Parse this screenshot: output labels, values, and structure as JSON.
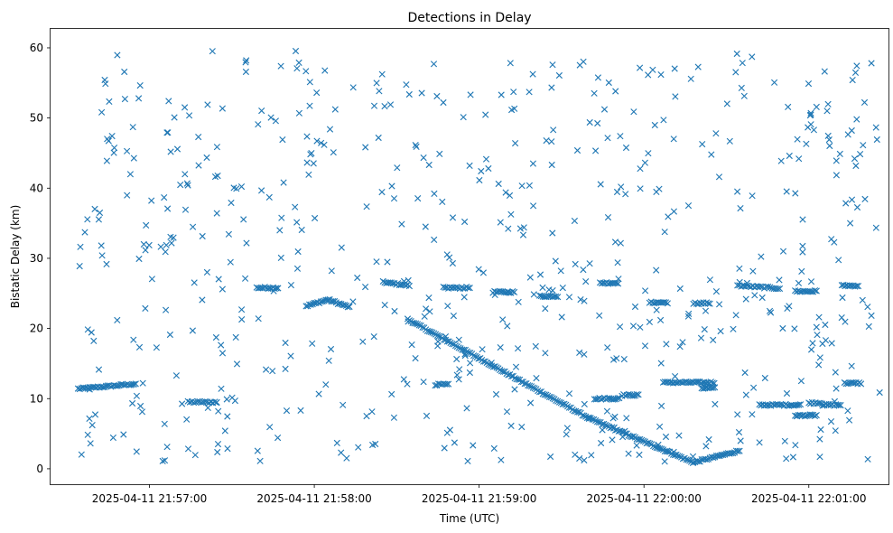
{
  "chart_data": {
    "type": "scatter",
    "title": "Detections in Delay",
    "xlabel": "Time (UTC)",
    "ylabel": "Bistatic Delay (km)",
    "marker": "x",
    "color": "#1f77b4",
    "x_axis_kind": "time",
    "x_range": [
      "2025-04-11 21:56:24",
      "2025-04-11 22:01:29"
    ],
    "x_ticks": [
      "2025-04-11 21:57:00",
      "2025-04-11 21:58:00",
      "2025-04-11 21:59:00",
      "2025-04-11 22:00:00",
      "2025-04-11 22:01:00"
    ],
    "ylim": [
      -2.2,
      62.7
    ],
    "y_ticks": [
      0,
      10,
      20,
      30,
      40,
      50,
      60
    ],
    "grid": false,
    "legend": "none",
    "series": [
      {
        "segments": [
          {
            "t_start": "2025-04-11 21:56:34",
            "t_end": "2025-04-11 21:56:55",
            "d_start": 11.4,
            "d_end": 12.1,
            "step_s": 0.6
          },
          {
            "t_start": "2025-04-11 21:57:14",
            "t_end": "2025-04-11 21:57:25",
            "d_start": 9.5,
            "d_end": 9.5,
            "step_s": 0.7
          },
          {
            "t_start": "2025-04-11 21:57:39",
            "t_end": "2025-04-11 21:57:47",
            "d_start": 25.8,
            "d_end": 25.8,
            "step_s": 0.6
          },
          {
            "t_start": "2025-04-11 21:57:57",
            "t_end": "2025-04-11 21:58:05",
            "d_start": 23.2,
            "d_end": 24.1,
            "step_s": 0.6
          },
          {
            "t_start": "2025-04-11 21:58:05",
            "t_end": "2025-04-11 21:58:13",
            "d_start": 24.1,
            "d_end": 23.0,
            "step_s": 0.6
          },
          {
            "t_start": "2025-04-11 21:58:25",
            "t_end": "2025-04-11 21:58:35",
            "d_start": 26.6,
            "d_end": 26.1,
            "step_s": 0.6
          },
          {
            "t_start": "2025-04-11 21:58:34",
            "t_end": "2025-04-11 21:59:40",
            "d_start": 21.3,
            "d_end": 7.2,
            "step_s": 0.6
          },
          {
            "t_start": "2025-04-11 21:59:40",
            "t_end": "2025-04-11 22:00:18",
            "d_start": 7.2,
            "d_end": 0.9,
            "step_s": 0.6
          },
          {
            "t_start": "2025-04-11 22:00:18",
            "t_end": "2025-04-11 22:00:35",
            "d_start": 0.9,
            "d_end": 2.6,
            "step_s": 0.6
          },
          {
            "t_start": "2025-04-11 21:58:44",
            "t_end": "2025-04-11 21:58:49",
            "d_start": 12.0,
            "d_end": 12.0,
            "step_s": 0.6
          },
          {
            "t_start": "2025-04-11 21:58:47",
            "t_end": "2025-04-11 21:58:57",
            "d_start": 25.8,
            "d_end": 25.8,
            "step_s": 0.6
          },
          {
            "t_start": "2025-04-11 21:59:05",
            "t_end": "2025-04-11 21:59:13",
            "d_start": 25.2,
            "d_end": 25.2,
            "step_s": 0.6
          },
          {
            "t_start": "2025-04-11 21:59:22",
            "t_end": "2025-04-11 21:59:29",
            "d_start": 24.6,
            "d_end": 24.6,
            "step_s": 0.6
          },
          {
            "t_start": "2025-04-11 21:59:42",
            "t_end": "2025-04-11 21:59:51",
            "d_start": 10.0,
            "d_end": 10.0,
            "step_s": 0.6
          },
          {
            "t_start": "2025-04-11 21:59:44",
            "t_end": "2025-04-11 21:59:51",
            "d_start": 26.5,
            "d_end": 26.5,
            "step_s": 0.6
          },
          {
            "t_start": "2025-04-11 21:59:52",
            "t_end": "2025-04-11 21:59:58",
            "d_start": 10.5,
            "d_end": 10.5,
            "step_s": 0.6
          },
          {
            "t_start": "2025-04-11 22:00:02",
            "t_end": "2025-04-11 22:00:09",
            "d_start": 23.7,
            "d_end": 23.7,
            "step_s": 0.6
          },
          {
            "t_start": "2025-04-11 22:00:07",
            "t_end": "2025-04-11 22:00:26",
            "d_start": 12.3,
            "d_end": 12.3,
            "step_s": 0.6
          },
          {
            "t_start": "2025-04-11 22:00:18",
            "t_end": "2025-04-11 22:00:24",
            "d_start": 23.6,
            "d_end": 23.6,
            "step_s": 0.6
          },
          {
            "t_start": "2025-04-11 22:00:21",
            "t_end": "2025-04-11 22:00:26",
            "d_start": 11.5,
            "d_end": 11.5,
            "step_s": 0.6
          },
          {
            "t_start": "2025-04-11 22:00:42",
            "t_end": "2025-04-11 22:00:57",
            "d_start": 9.1,
            "d_end": 9.1,
            "step_s": 0.6
          },
          {
            "t_start": "2025-04-11 22:01:00",
            "t_end": "2025-04-11 22:01:05",
            "d_start": 9.4,
            "d_end": 9.4,
            "step_s": 0.6
          },
          {
            "t_start": "2025-04-11 22:01:05",
            "t_end": "2025-04-11 22:01:12",
            "d_start": 9.1,
            "d_end": 9.1,
            "step_s": 0.6
          },
          {
            "t_start": "2025-04-11 22:01:12",
            "t_end": "2025-04-11 22:01:18",
            "d_start": 26.1,
            "d_end": 26.1,
            "step_s": 0.6
          },
          {
            "t_start": "2025-04-11 22:01:13",
            "t_end": "2025-04-11 22:01:19",
            "d_start": 12.2,
            "d_end": 12.2,
            "step_s": 0.6
          },
          {
            "t_start": "2025-04-11 22:00:34",
            "t_end": "2025-04-11 22:00:50",
            "d_start": 26.1,
            "d_end": 25.7,
            "step_s": 0.7
          },
          {
            "t_start": "2025-04-11 22:00:55",
            "t_end": "2025-04-11 22:01:03",
            "d_start": 25.3,
            "d_end": 25.3,
            "step_s": 0.6
          },
          {
            "t_start": "2025-04-11 22:00:55",
            "t_end": "2025-04-11 22:01:03",
            "d_start": 7.6,
            "d_end": 7.6,
            "step_s": 0.6
          }
        ],
        "scatter_points": {
          "count": 620,
          "t_start": "2025-04-11 21:56:34",
          "t_end": "2025-04-11 22:01:26",
          "d_min": 1.0,
          "d_max": 59.8
        }
      }
    ]
  }
}
